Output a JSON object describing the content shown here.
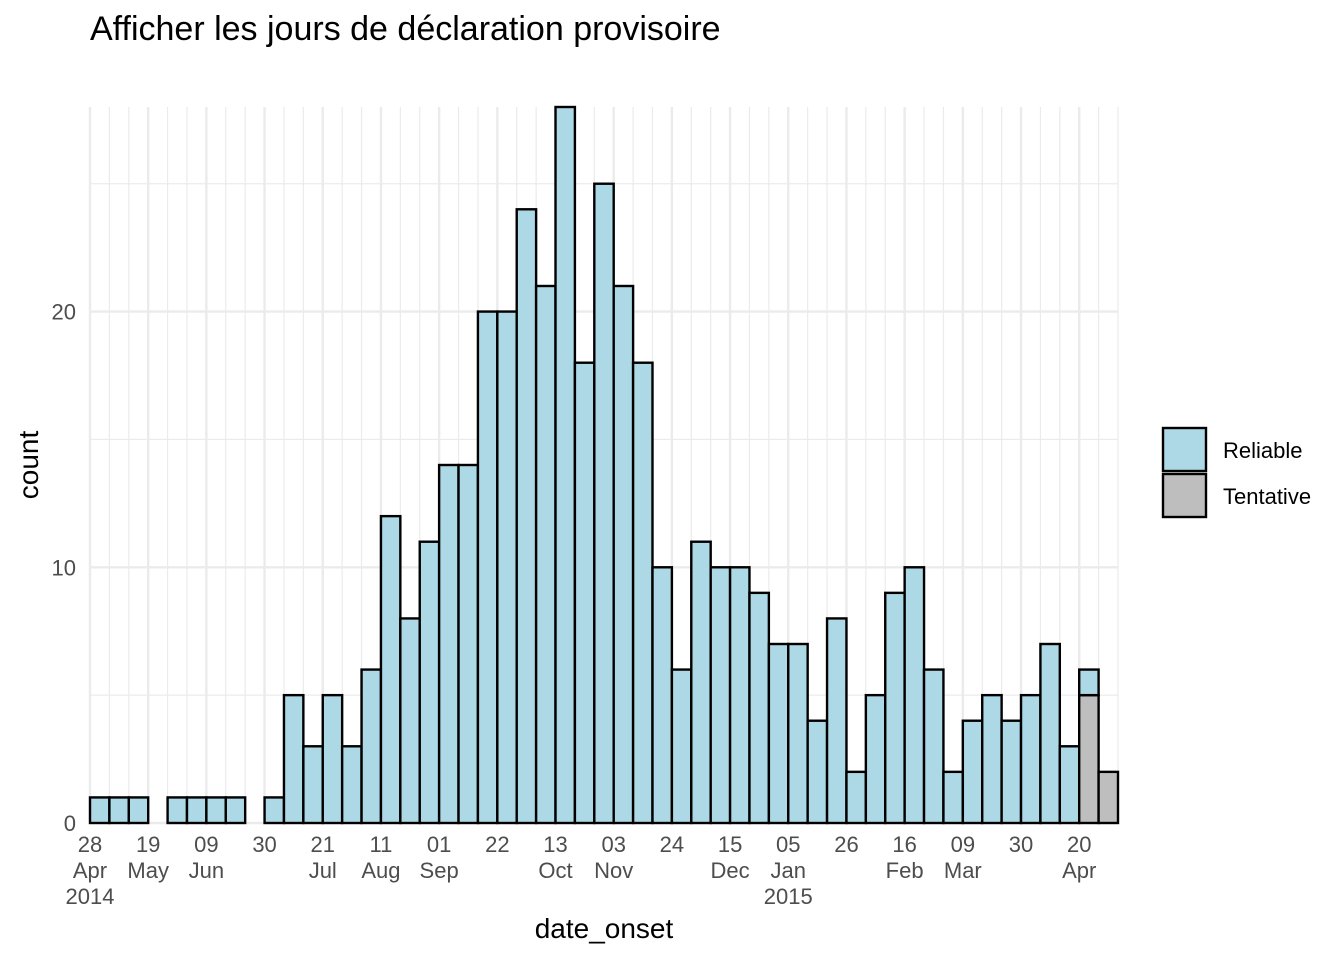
{
  "chart_data": {
    "type": "bar",
    "stacked": true,
    "title": "Afficher les jours de déclaration provisoire",
    "xlabel": "date_onset",
    "ylabel": "count",
    "bin_width_days": 7,
    "first_bin_start": "2014-04-28",
    "ylim": [
      0,
      28
    ],
    "y_ticks": [
      0,
      10,
      20
    ],
    "grid": true,
    "legend_position": "right",
    "series": [
      {
        "name": "Reliable",
        "color": "#add8e6",
        "values": [
          1,
          1,
          1,
          0,
          1,
          1,
          1,
          1,
          0,
          1,
          5,
          3,
          5,
          3,
          6,
          12,
          8,
          11,
          14,
          14,
          20,
          20,
          24,
          21,
          28,
          18,
          25,
          21,
          18,
          10,
          6,
          11,
          10,
          10,
          9,
          7,
          7,
          4,
          8,
          2,
          5,
          9,
          10,
          6,
          2,
          4,
          5,
          4,
          5,
          7,
          3,
          1,
          0
        ]
      },
      {
        "name": "Tentative",
        "color": "#bebebe",
        "values": [
          0,
          0,
          0,
          0,
          0,
          0,
          0,
          0,
          0,
          0,
          0,
          0,
          0,
          0,
          0,
          0,
          0,
          0,
          0,
          0,
          0,
          0,
          0,
          0,
          0,
          0,
          0,
          0,
          0,
          0,
          0,
          0,
          0,
          0,
          0,
          0,
          0,
          0,
          0,
          0,
          0,
          0,
          0,
          0,
          0,
          0,
          0,
          0,
          0,
          0,
          0,
          5,
          2
        ]
      }
    ],
    "x_tick_labels": [
      {
        "date": "2014-04-28",
        "lines": [
          "28",
          "Apr",
          "2014"
        ]
      },
      {
        "date": "2014-05-19",
        "lines": [
          "19",
          "May"
        ]
      },
      {
        "date": "2014-06-09",
        "lines": [
          "09",
          "Jun"
        ]
      },
      {
        "date": "2014-06-30",
        "lines": [
          "30"
        ]
      },
      {
        "date": "2014-07-21",
        "lines": [
          "21",
          "Jul"
        ]
      },
      {
        "date": "2014-08-11",
        "lines": [
          "11",
          "Aug"
        ]
      },
      {
        "date": "2014-09-01",
        "lines": [
          "01",
          "Sep"
        ]
      },
      {
        "date": "2014-09-22",
        "lines": [
          "22"
        ]
      },
      {
        "date": "2014-10-13",
        "lines": [
          "13",
          "Oct"
        ]
      },
      {
        "date": "2014-11-03",
        "lines": [
          "03",
          "Nov"
        ]
      },
      {
        "date": "2014-11-24",
        "lines": [
          "24"
        ]
      },
      {
        "date": "2014-12-15",
        "lines": [
          "15",
          "Dec"
        ]
      },
      {
        "date": "2015-01-05",
        "lines": [
          "05",
          "Jan",
          "2015"
        ]
      },
      {
        "date": "2015-01-26",
        "lines": [
          "26"
        ]
      },
      {
        "date": "2015-02-16",
        "lines": [
          "16",
          "Feb"
        ]
      },
      {
        "date": "2015-03-09",
        "lines": [
          "09",
          "Mar"
        ]
      },
      {
        "date": "2015-03-30",
        "lines": [
          "30"
        ]
      },
      {
        "date": "2015-04-20",
        "lines": [
          "20",
          "Apr"
        ]
      }
    ]
  }
}
